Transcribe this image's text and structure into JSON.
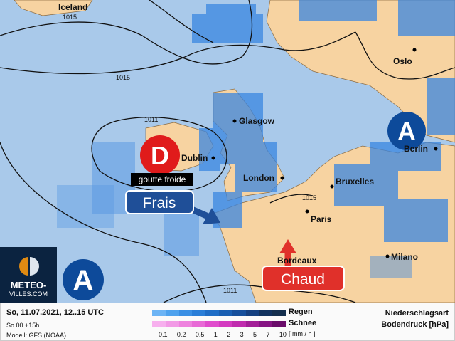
{
  "map": {
    "cities": [
      {
        "name": "Iceland"
      },
      {
        "name": "Glasgow"
      },
      {
        "name": "Dublin"
      },
      {
        "name": "London"
      },
      {
        "name": "Bruxelles"
      },
      {
        "name": "Paris"
      },
      {
        "name": "Bordeaux"
      },
      {
        "name": "Berlin"
      },
      {
        "name": "Oslo"
      },
      {
        "name": "Milano"
      }
    ],
    "isobars": [
      "1015",
      "1015",
      "1011",
      "1015",
      "1011"
    ],
    "low": {
      "letter": "D",
      "label": "goutte froide",
      "color": "#e01b1b"
    },
    "highs": [
      {
        "letter": "A"
      },
      {
        "letter": "A"
      }
    ],
    "cool_label": "Frais",
    "warm_label": "Chaud",
    "colors": {
      "sea": "#a9c9ea",
      "land": "#f7d3a1",
      "rain": "#3a86e0",
      "low": "#e01b1b",
      "high": "#0d4a9a",
      "cool": "#1f4f98",
      "warm": "#e0302a"
    }
  },
  "logo": {
    "line1": "METEO-",
    "line2": "VILLES.COM"
  },
  "legend": {
    "date": "So, 11.07.2021, 12..15 UTC",
    "run": "So 00 +15h",
    "model": "Modell: GFS (NOAA)",
    "rain": "Regen",
    "snow": "Schnee",
    "unit": "[ mm / h ]",
    "ticks": [
      "0.1",
      "0.2",
      "0.5",
      "1",
      "2",
      "3",
      "5",
      "7",
      "10"
    ],
    "title1": "Niederschlagsart",
    "title2": "Bodendruck [hPa]",
    "rain_colors": [
      "#6cb4f5",
      "#4ea2ee",
      "#3a8fe4",
      "#2a7ed8",
      "#1f6dc6",
      "#1a5fb2",
      "#164f9c",
      "#143f80",
      "#12325f",
      "#142f4e"
    ],
    "snow_colors": [
      "#f7b0ee",
      "#f29ae6",
      "#ee82de",
      "#e86ad6",
      "#e04ccc",
      "#d43ac0",
      "#c02cae",
      "#a31f97",
      "#861483",
      "#6a0c6a"
    ]
  }
}
